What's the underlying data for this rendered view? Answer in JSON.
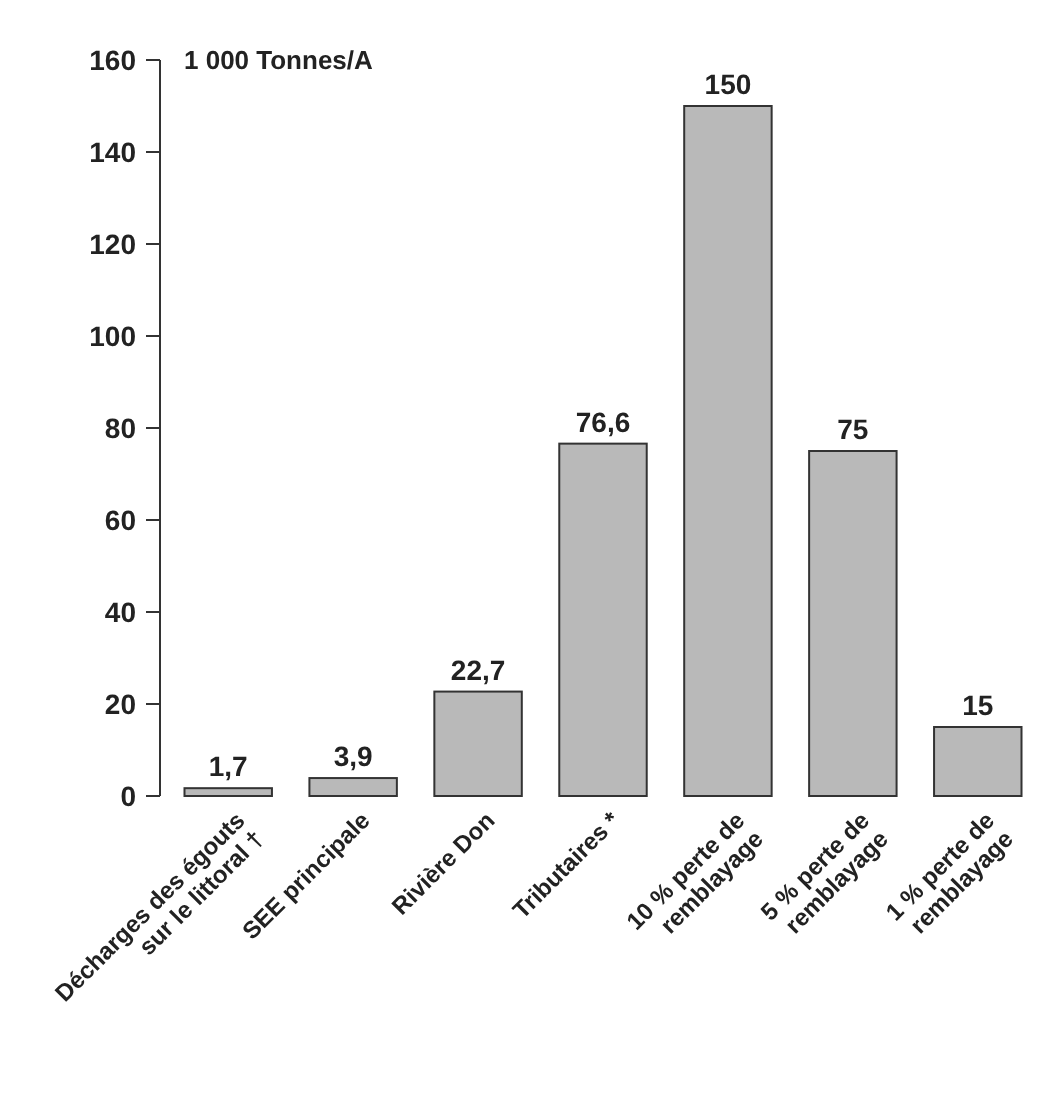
{
  "chart_data": {
    "type": "bar",
    "ylabel": "1 000 Tonnes/A",
    "categories": [
      "Décharges des égouts sur le littoral †",
      "SEE principale",
      "Rivière Don",
      "Tributaires *",
      "10 % perte de remblayage",
      "5 % perte de remblayage",
      "1 % perte de remblayage"
    ],
    "values": [
      1.7,
      3.9,
      22.7,
      76.6,
      150,
      75,
      15
    ],
    "value_labels": [
      "1,7",
      "3,9",
      "22,7",
      "76,6",
      "150",
      "75",
      "15"
    ],
    "color": "#b9b9b9",
    "ylim": [
      0,
      160
    ],
    "yticks": [
      0,
      20,
      40,
      60,
      80,
      100,
      120,
      140,
      160
    ],
    "grid": false
  }
}
